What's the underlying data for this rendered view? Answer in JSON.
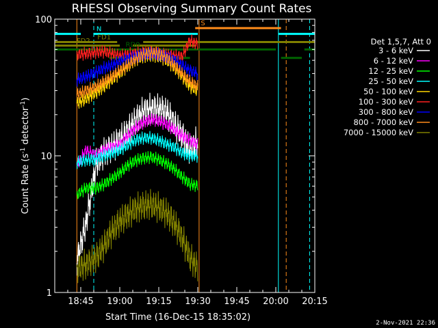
{
  "chart_data": {
    "type": "line",
    "title": "RHESSI Observing Summary Count Rates",
    "xlabel": "Start Time (16-Dec-15 18:35:02)",
    "ylabel": "Count Rate (s-1 detector-1)",
    "ylabel_parts": [
      "Count Rate (s",
      "-1",
      " detector",
      "-1",
      ")"
    ],
    "y_scale": "log",
    "ylim": [
      1,
      100
    ],
    "y_ticks": [
      "1",
      "10",
      "100"
    ],
    "xlim_min": [
      0,
      100
    ],
    "x_ticks": [
      {
        "min": 10,
        "label": "18:45"
      },
      {
        "min": 25,
        "label": "19:00"
      },
      {
        "min": 40,
        "label": "19:15"
      },
      {
        "min": 55,
        "label": "19:30"
      },
      {
        "min": 70,
        "label": "19:45"
      },
      {
        "min": 85,
        "label": "20:00"
      },
      {
        "min": 100,
        "label": "20:15"
      }
    ],
    "legend_header": "Det 1,5,7, Att 0",
    "legend_position": "right",
    "timestamp": "2-Nov-2021 22:36",
    "data_interval_min": [
      8.5,
      55
    ],
    "series": [
      {
        "name": "3 - 6 keV",
        "color": "#ffffff",
        "x": [
          8.5,
          12,
          16,
          19,
          22,
          25,
          28,
          31,
          34,
          37,
          40,
          43,
          46,
          49,
          52,
          55
        ],
        "y": [
          1.7,
          3.2,
          8.8,
          10.5,
          11.5,
          13,
          15,
          18,
          21,
          22,
          22,
          21,
          17,
          14,
          11,
          13
        ]
      },
      {
        "name": "6 - 12 keV",
        "color": "#ff00ff",
        "x": [
          8.5,
          12,
          16,
          19,
          22,
          25,
          28,
          31,
          34,
          37,
          40,
          43,
          46,
          49,
          52,
          55
        ],
        "y": [
          8.5,
          11,
          10,
          11,
          11.5,
          12,
          14,
          16,
          17.5,
          18.5,
          18,
          17,
          15.5,
          14,
          13,
          12
        ]
      },
      {
        "name": "12 - 25 keV",
        "color": "#00ff00",
        "x": [
          8.5,
          12,
          16,
          19,
          22,
          25,
          28,
          31,
          34,
          37,
          40,
          43,
          46,
          49,
          52,
          55
        ],
        "y": [
          5.2,
          5.8,
          5.8,
          6.2,
          6.8,
          7.5,
          8.5,
          9.2,
          9.6,
          9.8,
          9.4,
          8.8,
          8,
          7,
          6.2,
          6
        ]
      },
      {
        "name": "25 - 50 keV",
        "color": "#00ffff",
        "x": [
          8.5,
          12,
          16,
          19,
          22,
          25,
          28,
          31,
          34,
          37,
          40,
          43,
          46,
          49,
          52,
          55
        ],
        "y": [
          9,
          9.3,
          9.5,
          10,
          10.5,
          11,
          12,
          13,
          13.5,
          13.5,
          13,
          12.2,
          11.5,
          10.5,
          10,
          10
        ]
      },
      {
        "name": "50 - 100 keV",
        "color": "#ffd700",
        "x": [
          8.5,
          12,
          16,
          19,
          22,
          25,
          28,
          31,
          34,
          37,
          40,
          43,
          46,
          49,
          52,
          55
        ],
        "y": [
          24,
          26,
          29,
          32,
          36,
          40,
          45,
          50,
          53,
          54,
          53,
          50,
          44,
          38,
          32,
          30
        ]
      },
      {
        "name": "100 - 300 keV",
        "color": "#ff2020",
        "x": [
          8.5,
          12,
          16,
          19,
          22,
          25,
          28,
          31,
          34,
          37,
          40,
          43,
          46,
          49,
          52,
          55
        ],
        "y": [
          55,
          56,
          57,
          58,
          56,
          54,
          55,
          56,
          57,
          57,
          56,
          55,
          54,
          53,
          70,
          65
        ]
      },
      {
        "name": "300 - 800 keV",
        "color": "#0000ff",
        "x": [
          8.5,
          12,
          16,
          19,
          22,
          25,
          28,
          31,
          34,
          37,
          40,
          43,
          46,
          49,
          52,
          55
        ],
        "y": [
          36,
          38,
          41,
          44,
          46,
          49,
          51,
          53,
          55,
          56,
          55,
          53,
          50,
          46,
          42,
          40
        ]
      },
      {
        "name": "800 - 7000 keV",
        "color": "#ff8c1a",
        "x": [
          8.5,
          12,
          16,
          19,
          22,
          25,
          28,
          31,
          34,
          37,
          40,
          43,
          46,
          49,
          52,
          55
        ],
        "y": [
          28,
          30,
          32,
          35,
          38,
          42,
          46,
          51,
          55,
          57,
          56,
          52,
          46,
          40,
          35,
          32
        ]
      },
      {
        "name": "7000 - 15000 keV",
        "color": "#808000",
        "x": [
          8.5,
          12,
          16,
          19,
          22,
          25,
          28,
          31,
          34,
          37,
          40,
          43,
          46,
          49,
          52,
          55
        ],
        "y": [
          1.5,
          1.6,
          1.8,
          2.2,
          2.8,
          3.3,
          3.7,
          4.1,
          4.3,
          4.4,
          4.2,
          3.8,
          3.2,
          2.5,
          1.8,
          1.5
        ]
      }
    ],
    "flag_bars": [
      {
        "label": "N",
        "color": "#00ffff",
        "value": 78,
        "segments": [
          [
            0,
            10
          ],
          [
            15,
            55
          ],
          [
            86,
            100
          ]
        ]
      },
      {
        "label": "S",
        "color": "#ff8c1a",
        "value": 86,
        "segments": [
          [
            54,
            87
          ]
        ]
      },
      {
        "label": "FD1",
        "color": "#808000",
        "value": 68,
        "segments": [
          [
            0,
            24
          ]
        ]
      },
      {
        "label": "",
        "color": "#808000",
        "value": 68,
        "segments": [
          [
            34,
            100
          ]
        ]
      },
      {
        "label": "FD2",
        "color": "#808000",
        "value": 64,
        "segments": [
          [
            0,
            25
          ]
        ]
      },
      {
        "label": "",
        "color": "#808000",
        "value": 64,
        "segments": [
          [
            30,
            54
          ]
        ]
      },
      {
        "label": "RD0",
        "color": "#006400",
        "value": 60,
        "segments": [
          [
            0,
            85
          ]
        ]
      },
      {
        "label": "",
        "color": "#006400",
        "value": 60,
        "segments": [
          [
            96,
            100
          ]
        ]
      },
      {
        "label": "RD6",
        "color": "#006400",
        "value": 52,
        "segments": [
          [
            21,
            52
          ],
          [
            87,
            95
          ]
        ]
      }
    ],
    "vertical_markers": [
      {
        "min": 0,
        "color": "#00ffff",
        "style": "solid"
      },
      {
        "min": 15,
        "color": "#00ffff",
        "style": "dashed"
      },
      {
        "min": 8.5,
        "color": "#ff8c1a",
        "style": "solid"
      },
      {
        "min": 55.5,
        "color": "#ff8c1a",
        "style": "solid"
      },
      {
        "min": 86,
        "color": "#00ffff",
        "style": "solid"
      },
      {
        "min": 89,
        "color": "#ff8c1a",
        "style": "dashed"
      },
      {
        "min": 98,
        "color": "#00ffff",
        "style": "dashed"
      }
    ]
  }
}
